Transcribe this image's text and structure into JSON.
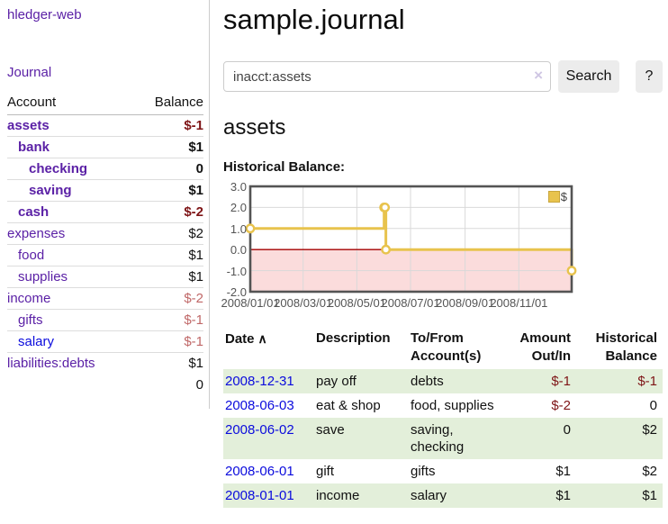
{
  "colors": {
    "link_purple": "#5b21a6",
    "link_blue": "#0b0bdd",
    "neg_strong": "#7e1416",
    "neg_soft": "#c06868",
    "row_green": "#e3efda",
    "btn_bg": "#ececec",
    "muted_text": "#545454",
    "series_gold": "#e8c34d"
  },
  "sidebar": {
    "app_title": "hledger-web",
    "journal_label": "Journal",
    "accounts_table": {
      "headers": {
        "account": "Account",
        "balance": "Balance"
      },
      "rows": [
        {
          "name": "assets",
          "balance": "$-1",
          "indent": 1,
          "bold": true,
          "neg": "strong",
          "link": "purple"
        },
        {
          "name": "bank",
          "balance": "$1",
          "indent": 2,
          "bold": true,
          "neg": "none",
          "link": "purple"
        },
        {
          "name": "checking",
          "balance": "0",
          "indent": 3,
          "bold": true,
          "neg": "none",
          "link": "purple"
        },
        {
          "name": "saving",
          "balance": "$1",
          "indent": 3,
          "bold": true,
          "neg": "none",
          "link": "purple"
        },
        {
          "name": "cash",
          "balance": "$-2",
          "indent": 2,
          "bold": true,
          "neg": "strong",
          "link": "purple"
        },
        {
          "name": "expenses",
          "balance": "$2",
          "indent": 1,
          "bold": false,
          "neg": "none",
          "link": "purple"
        },
        {
          "name": "food",
          "balance": "$1",
          "indent": 2,
          "bold": false,
          "neg": "none",
          "link": "purple"
        },
        {
          "name": "supplies",
          "balance": "$1",
          "indent": 2,
          "bold": false,
          "neg": "none",
          "link": "purple"
        },
        {
          "name": "income",
          "balance": "$-2",
          "indent": 1,
          "bold": false,
          "neg": "soft",
          "link": "purple"
        },
        {
          "name": "gifts",
          "balance": "$-1",
          "indent": 2,
          "bold": false,
          "neg": "soft",
          "link": "purple"
        },
        {
          "name": "salary",
          "balance": "$-1",
          "indent": 2,
          "bold": false,
          "neg": "soft",
          "link": "blue"
        },
        {
          "name": "liabilities:debts",
          "balance": "$1",
          "indent": 1,
          "bold": false,
          "neg": "none",
          "link": "purple"
        }
      ],
      "total": "0"
    }
  },
  "main": {
    "title": "sample.journal",
    "search": {
      "value": "inacct:assets",
      "clear_icon": "×",
      "button_label": "Search",
      "help_label": "?"
    },
    "account_heading": "assets",
    "chart_label": "Historical Balance:",
    "register_table": {
      "headers": {
        "date": "Date",
        "sort_icon": "∧",
        "description": "Description",
        "tofrom_l1": "To/From",
        "tofrom_l2": "Account(s)",
        "amount_l1": "Amount",
        "amount_l2": "Out/In",
        "balance_l1": "Historical",
        "balance_l2": "Balance"
      },
      "rows": [
        {
          "date": "2008-12-31",
          "description": "pay off",
          "accounts": "debts",
          "amount": "$-1",
          "balance": "$-1",
          "amount_neg": true,
          "balance_neg": true,
          "shade": true
        },
        {
          "date": "2008-06-03",
          "description": "eat & shop",
          "accounts": "food, supplies",
          "amount": "$-2",
          "balance": "0",
          "amount_neg": true,
          "balance_neg": false,
          "shade": false
        },
        {
          "date": "2008-06-02",
          "description": "save",
          "accounts": "saving, checking",
          "amount": "0",
          "balance": "$2",
          "amount_neg": false,
          "balance_neg": false,
          "shade": true
        },
        {
          "date": "2008-06-01",
          "description": "gift",
          "accounts": "gifts",
          "amount": "$1",
          "balance": "$2",
          "amount_neg": false,
          "balance_neg": false,
          "shade": false
        },
        {
          "date": "2008-01-01",
          "description": "income",
          "accounts": "salary",
          "amount": "$1",
          "balance": "$1",
          "amount_neg": false,
          "balance_neg": false,
          "shade": true
        }
      ]
    }
  },
  "chart_data": {
    "type": "line",
    "step": true,
    "title": "Historical Balance",
    "x_domain": [
      "2008-01-01",
      "2008-12-31"
    ],
    "xticks": [
      {
        "date": "2008-01-01",
        "label": "2008/01/01"
      },
      {
        "date": "2008-03-01",
        "label": "2008/03/01"
      },
      {
        "date": "2008-05-01",
        "label": "2008/05/01"
      },
      {
        "date": "2008-07-01",
        "label": "2008/07/01"
      },
      {
        "date": "2008-09-01",
        "label": "2008/09/01"
      },
      {
        "date": "2008-11-01",
        "label": "2008/11/01"
      }
    ],
    "yticks": [
      {
        "v": 3,
        "label": "3.0"
      },
      {
        "v": 2,
        "label": "2.0"
      },
      {
        "v": 1,
        "label": "1.0"
      },
      {
        "v": 0,
        "label": "0.0"
      },
      {
        "v": -1,
        "label": "-1.0"
      },
      {
        "v": -2,
        "label": "-2.0"
      }
    ],
    "ylim": [
      -2,
      3
    ],
    "grid": true,
    "legend": {
      "label": "$",
      "position": "top-right"
    },
    "series": [
      {
        "name": "$",
        "color": "#e8c34d",
        "marker_fill": "#ffffff",
        "points": [
          [
            "2008-01-01",
            1
          ],
          [
            "2008-06-01",
            2
          ],
          [
            "2008-06-02",
            2
          ],
          [
            "2008-06-03",
            0
          ],
          [
            "2008-12-31",
            -1
          ]
        ]
      }
    ],
    "negative_region_color": "#fbdcdc",
    "zero_line_color": "#a40000",
    "grid_color": "#d9d9d9",
    "border_color": "#545454"
  }
}
